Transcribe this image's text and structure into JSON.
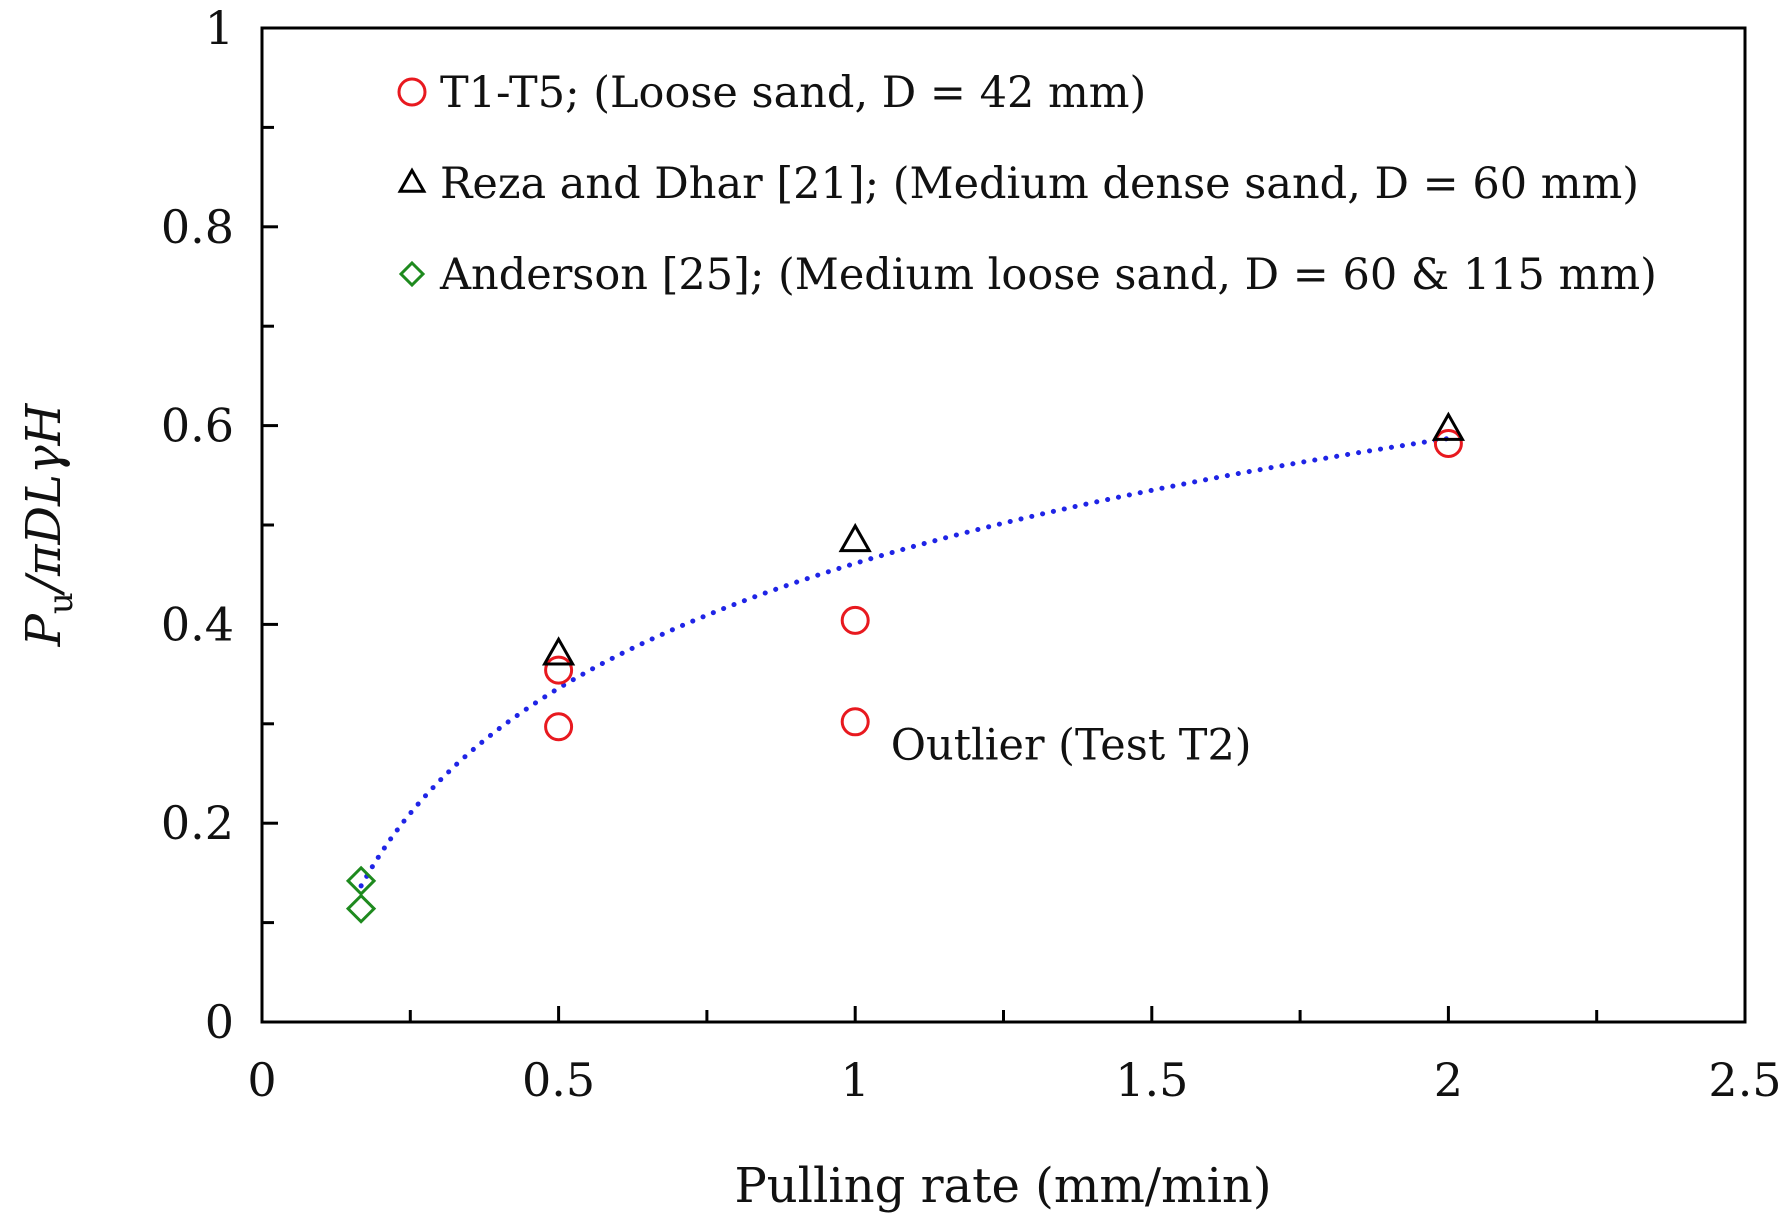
{
  "chart_data": {
    "type": "scatter",
    "title": "",
    "xlabel": "Pulling rate (mm/min)",
    "ylabel": {
      "main": "P",
      "sub": "u",
      "rest": "/πDLγH"
    },
    "xlim": [
      0,
      2.5
    ],
    "ylim": [
      0,
      1
    ],
    "x_ticks": [
      0,
      0.5,
      1,
      1.5,
      2,
      2.5
    ],
    "x_tick_labels": [
      "0",
      "0.5",
      "1",
      "1.5",
      "2",
      "2.5"
    ],
    "x_minor_step": 0.25,
    "y_ticks": [
      0,
      0.2,
      0.4,
      0.6,
      0.8,
      1
    ],
    "y_tick_labels": [
      "0",
      "0.2",
      "0.4",
      "0.6",
      "0.8",
      "1"
    ],
    "y_minor_step": 0.1,
    "grid": false,
    "legend_position": "top-left",
    "series": [
      {
        "name": "T1-T5; (Loose sand, D = 42 mm)",
        "marker": "circle",
        "color": "#e8191f",
        "points": [
          {
            "x": 0.5,
            "y": 0.354
          },
          {
            "x": 0.5,
            "y": 0.297
          },
          {
            "x": 1.0,
            "y": 0.404
          },
          {
            "x": 1.0,
            "y": 0.302
          },
          {
            "x": 2.0,
            "y": 0.582
          }
        ]
      },
      {
        "name": "Reza and Dhar [21]; (Medium dense sand, D = 60 mm)",
        "marker": "triangle",
        "color": "#000000",
        "points": [
          {
            "x": 0.5,
            "y": 0.37
          },
          {
            "x": 1.0,
            "y": 0.484
          },
          {
            "x": 2.0,
            "y": 0.596
          }
        ]
      },
      {
        "name": "Anderson [25]; (Medium loose sand, D = 60 & 115 mm)",
        "marker": "diamond",
        "color": "#1e8a1e",
        "points": [
          {
            "x": 0.167,
            "y": 0.142
          },
          {
            "x": 0.167,
            "y": 0.114
          }
        ]
      }
    ],
    "trendline": {
      "style": "dotted",
      "color": "#1f24e6",
      "model": "logarithmic",
      "a": 0.4614,
      "b": 0.1813,
      "x_range": [
        0.167,
        2.0
      ]
    },
    "annotations": [
      {
        "text": "Outlier (Test T2)",
        "x": 1.06,
        "y": 0.264
      }
    ]
  }
}
